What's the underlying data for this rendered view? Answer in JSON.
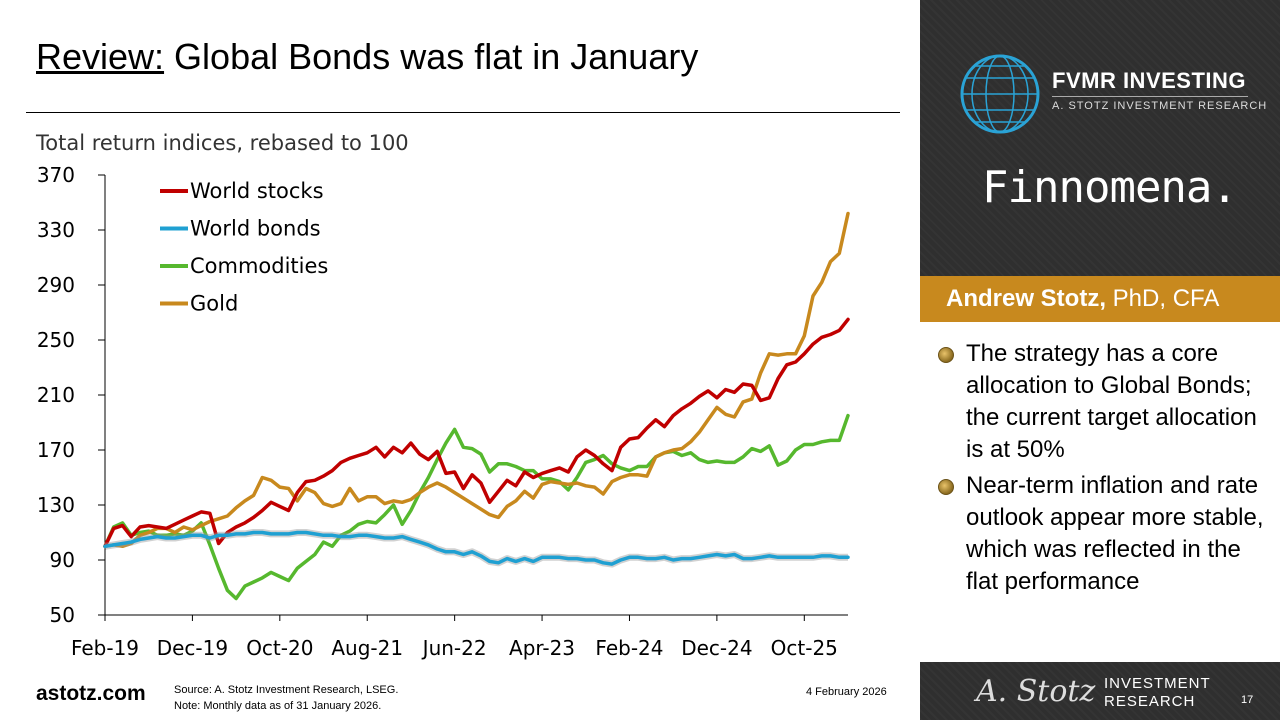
{
  "title": {
    "underlined": "Review:",
    "rest": " Global Bonds was flat in January"
  },
  "footer": {
    "site": "astotz.com",
    "source_line1": "Source: A. Stotz Investment Research, LSEG.",
    "source_line2": "Note: Monthly data as of 31 January 2026.",
    "date": "4 February 2026"
  },
  "panel": {
    "brand_name": "FVMR INVESTING",
    "brand_sub": "A. STOTZ INVESTMENT RESEARCH",
    "partner": "Finnomena.",
    "author_name": "Andrew Stotz,",
    "author_creds": " PhD, CFA",
    "bullets": [
      "The strategy has a core allocation to Global Bonds; the current target allocation is at 50%",
      "Near-term inflation and rate outlook appear more stable, which was reflected in the flat performance"
    ],
    "signature": "A. Stotz",
    "logo_text_line1": "INVESTMENT",
    "logo_text_line2": "RESEARCH",
    "page_number": "17"
  },
  "colors": {
    "stocks": "#c00000",
    "bonds": "#1fa0d2",
    "commodities": "#56b82e",
    "gold": "#c8891e",
    "panel": "#2f2f2f",
    "accent": "#c8891e"
  },
  "chart_data": {
    "type": "line",
    "subtitle": "Total return indices, rebased to 100",
    "ylim": [
      50,
      370
    ],
    "yticks": [
      50,
      90,
      130,
      170,
      210,
      250,
      290,
      330,
      370
    ],
    "xtick_labels": [
      "Feb-19",
      "Dec-19",
      "Oct-20",
      "Aug-21",
      "Jun-22",
      "Apr-23",
      "Feb-24",
      "Dec-24",
      "Oct-25"
    ],
    "xtick_index": [
      0,
      10,
      20,
      30,
      40,
      50,
      60,
      70,
      80
    ],
    "legend_position": "top-left",
    "series": [
      {
        "name": "World stocks",
        "key": "stocks",
        "values": [
          100,
          113,
          115,
          107,
          114,
          115,
          114,
          113,
          116,
          119,
          122,
          125,
          124,
          102,
          110,
          114,
          117,
          121,
          126,
          132,
          129,
          126,
          139,
          147,
          148,
          151,
          155,
          161,
          164,
          166,
          168,
          172,
          165,
          172,
          168,
          175,
          167,
          163,
          169,
          153,
          154,
          142,
          152,
          146,
          132,
          140,
          148,
          144,
          154,
          150,
          153,
          155,
          157,
          154,
          165,
          170,
          166,
          160,
          155,
          172,
          178,
          179,
          186,
          192,
          187,
          195,
          200,
          204,
          209,
          213,
          208,
          214,
          212,
          218,
          217,
          206,
          208,
          222,
          232,
          234,
          240,
          247,
          252,
          254,
          257,
          265
        ]
      },
      {
        "name": "World bonds",
        "key": "bonds",
        "values": [
          100,
          101,
          102,
          103,
          105,
          106,
          107,
          106,
          106,
          107,
          108,
          108,
          106,
          108,
          108,
          109,
          109,
          110,
          110,
          109,
          109,
          109,
          110,
          110,
          109,
          108,
          108,
          107,
          107,
          108,
          108,
          107,
          106,
          106,
          107,
          105,
          103,
          101,
          98,
          96,
          96,
          94,
          96,
          93,
          89,
          88,
          91,
          89,
          91,
          89,
          92,
          92,
          92,
          91,
          91,
          90,
          90,
          88,
          87,
          90,
          92,
          92,
          91,
          91,
          92,
          90,
          91,
          91,
          92,
          93,
          94,
          93,
          94,
          91,
          91,
          92,
          93,
          92,
          92,
          92,
          92,
          92,
          93,
          93,
          92,
          92
        ]
      },
      {
        "name": "Commodities",
        "key": "commodities",
        "values": [
          100,
          114,
          117,
          108,
          110,
          111,
          108,
          108,
          109,
          108,
          111,
          117,
          101,
          84,
          68,
          62,
          71,
          74,
          77,
          81,
          78,
          75,
          84,
          89,
          94,
          103,
          100,
          108,
          111,
          116,
          118,
          117,
          123,
          130,
          116,
          126,
          139,
          150,
          163,
          175,
          185,
          172,
          171,
          167,
          154,
          160,
          160,
          158,
          155,
          155,
          149,
          149,
          147,
          141,
          150,
          161,
          163,
          166,
          160,
          157,
          155,
          158,
          158,
          165,
          168,
          169,
          166,
          168,
          163,
          161,
          162,
          161,
          161,
          165,
          171,
          169,
          173,
          159,
          162,
          170,
          174,
          174,
          176,
          177,
          177,
          195
        ]
      },
      {
        "name": "Gold",
        "key": "gold",
        "values": [
          100,
          101,
          100,
          102,
          108,
          110,
          113,
          113,
          110,
          114,
          112,
          115,
          118,
          120,
          122,
          128,
          133,
          137,
          150,
          148,
          143,
          142,
          133,
          142,
          139,
          131,
          129,
          131,
          142,
          133,
          136,
          136,
          131,
          133,
          132,
          134,
          139,
          143,
          146,
          143,
          139,
          135,
          131,
          127,
          123,
          121,
          129,
          133,
          140,
          135,
          145,
          147,
          146,
          145,
          146,
          144,
          143,
          138,
          147,
          150,
          152,
          152,
          151,
          165,
          168,
          170,
          171,
          176,
          183,
          192,
          201,
          196,
          194,
          205,
          207,
          226,
          240,
          239,
          240,
          240,
          253,
          282,
          292,
          307,
          313,
          342
        ]
      }
    ]
  }
}
